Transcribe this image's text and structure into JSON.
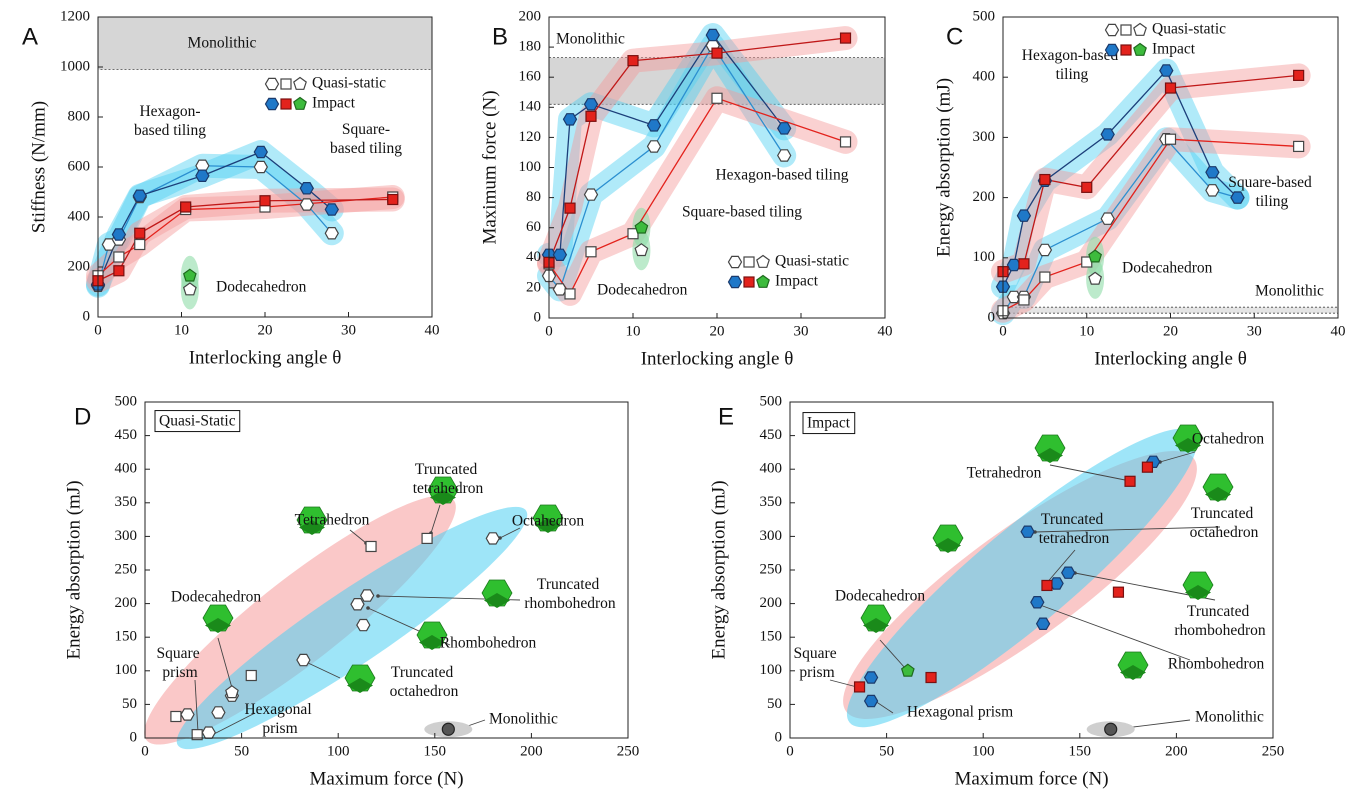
{
  "chart_data": [
    {
      "type": "line",
      "panel": "A",
      "xlabel": "Interlocking angle θ",
      "ylabel": "Stiffness (N/mm)",
      "xlim": [
        0,
        40
      ],
      "xticks": [
        0,
        10,
        20,
        30,
        40
      ],
      "ylim": [
        0,
        1200
      ],
      "yticks": [
        0,
        200,
        400,
        600,
        800,
        1000,
        1200
      ],
      "bands": [
        {
          "label": "Monolithic",
          "range": [
            990,
            1200
          ],
          "color": "#d6d6d6"
        }
      ],
      "legend": [
        {
          "label": "Quasi-static",
          "filled": false,
          "colors": [
            "#ffffff",
            "#ffffff",
            "#ffffff"
          ]
        },
        {
          "label": "Impact",
          "filled": true,
          "colors": [
            "#1f78c8",
            "#e3221c",
            "#3dbb3d"
          ]
        }
      ],
      "series": [
        {
          "name": "Hexagon-based tiling",
          "marker": "hexagon",
          "filled": false,
          "color": "#2b8fd0",
          "marker_color": "#ffffff",
          "band": "#4fd0f2",
          "x": [
            0,
            1.3,
            2.5,
            5,
            12.5,
            19.5,
            25,
            28
          ],
          "values": [
            125,
            290,
            310,
            480,
            605,
            600,
            450,
            335
          ]
        },
        {
          "name": "Hexagon-based tiling",
          "marker": "hexagon",
          "filled": true,
          "color": "#1c3f7a",
          "marker_color": "#1f78c8",
          "band": "#4fd0f2",
          "x": [
            0,
            2.5,
            5,
            12.5,
            19.5,
            25,
            28
          ],
          "values": [
            130,
            330,
            485,
            565,
            660,
            515,
            430
          ]
        },
        {
          "name": "Square-based tiling",
          "marker": "square",
          "filled": false,
          "color": "#e3221c",
          "marker_color": "#ffffff",
          "band": "#f59a9a",
          "x": [
            0,
            2.5,
            5,
            10.5,
            20,
            35.3
          ],
          "values": [
            165,
            240,
            290,
            430,
            440,
            480
          ]
        },
        {
          "name": "Square-based tiling",
          "marker": "square",
          "filled": true,
          "color": "#c01818",
          "marker_color": "#e3221c",
          "band": "#f59a9a",
          "x": [
            0,
            2.5,
            5,
            10.5,
            20,
            35.3
          ],
          "values": [
            145,
            185,
            335,
            440,
            465,
            470
          ]
        },
        {
          "name": "Dodecahedron",
          "marker": "pentagon",
          "filled": false,
          "color": "#3dbb3d",
          "marker_color": "#ffffff",
          "band": "#8fdca8",
          "x": [
            11
          ],
          "values": [
            110
          ]
        },
        {
          "name": "Dodecahedron",
          "marker": "pentagon",
          "filled": true,
          "color": "#3dbb3d",
          "marker_color": "#3dbb3d",
          "band": "#8fdca8",
          "x": [
            11
          ],
          "values": [
            165
          ]
        }
      ]
    },
    {
      "type": "line",
      "panel": "B",
      "xlabel": "Interlocking angle θ",
      "ylabel": "Maximum force (N)",
      "xlim": [
        0,
        40
      ],
      "xticks": [
        0,
        10,
        20,
        30,
        40
      ],
      "ylim": [
        0,
        200
      ],
      "yticks": [
        0,
        20,
        40,
        60,
        80,
        100,
        120,
        140,
        160,
        180,
        200
      ],
      "bands": [
        {
          "label": "Monolithic",
          "range": [
            142,
            173
          ],
          "color": "#d6d6d6"
        }
      ],
      "legend": [
        {
          "label": "Quasi-static",
          "filled": false,
          "colors": [
            "#ffffff",
            "#ffffff",
            "#ffffff"
          ]
        },
        {
          "label": "Impact",
          "filled": true,
          "colors": [
            "#1f78c8",
            "#e3221c",
            "#3dbb3d"
          ]
        }
      ],
      "series": [
        {
          "name": "Hexagon-based tiling",
          "marker": "hexagon",
          "filled": false,
          "color": "#2b8fd0",
          "marker_color": "#ffffff",
          "band": "#4fd0f2",
          "x": [
            0,
            1.3,
            5,
            12.5,
            19.5,
            28
          ],
          "values": [
            28,
            19,
            82,
            114,
            181,
            108
          ]
        },
        {
          "name": "Hexagon-based tiling",
          "marker": "hexagon",
          "filled": true,
          "color": "#1c3f7a",
          "marker_color": "#1f78c8",
          "band": "#4fd0f2",
          "x": [
            0,
            1.3,
            2.5,
            5,
            12.5,
            19.5,
            28
          ],
          "values": [
            42,
            42,
            132,
            142,
            128,
            188,
            126
          ]
        },
        {
          "name": "Square-based tiling",
          "marker": "square",
          "filled": false,
          "color": "#e3221c",
          "marker_color": "#ffffff",
          "band": "#f59a9a",
          "x": [
            0,
            2.5,
            5,
            10,
            20,
            35.3
          ],
          "values": [
            36,
            16,
            44,
            56,
            146,
            117
          ]
        },
        {
          "name": "Square-based tiling",
          "marker": "square",
          "filled": true,
          "color": "#c01818",
          "marker_color": "#e3221c",
          "band": "#f59a9a",
          "x": [
            0,
            2.5,
            5,
            10,
            20,
            35.3
          ],
          "values": [
            37,
            73,
            134,
            171,
            176,
            186
          ]
        },
        {
          "name": "Dodecahedron",
          "marker": "pentagon",
          "filled": false,
          "color": "#3dbb3d",
          "marker_color": "#ffffff",
          "band": "#8fdca8",
          "x": [
            11
          ],
          "values": [
            45
          ]
        },
        {
          "name": "Dodecahedron",
          "marker": "pentagon",
          "filled": true,
          "color": "#3dbb3d",
          "marker_color": "#3dbb3d",
          "band": "#8fdca8",
          "x": [
            11
          ],
          "values": [
            60
          ]
        }
      ]
    },
    {
      "type": "line",
      "panel": "C",
      "xlabel": "Interlocking angle θ",
      "ylabel": "Energy absorption (mJ)",
      "xlim": [
        0,
        40
      ],
      "xticks": [
        0,
        10,
        20,
        30,
        40
      ],
      "ylim": [
        0,
        500
      ],
      "yticks": [
        0,
        100,
        200,
        300,
        400,
        500
      ],
      "bands": [
        {
          "label": "Monolithic",
          "range": [
            8,
            18
          ],
          "color": "#e4e4e4"
        }
      ],
      "legend": [
        {
          "label": "Quasi-static",
          "filled": false,
          "colors": [
            "#ffffff",
            "#ffffff",
            "#ffffff"
          ]
        },
        {
          "label": "Impact",
          "filled": true,
          "colors": [
            "#1f78c8",
            "#e3221c",
            "#3dbb3d"
          ]
        }
      ],
      "series": [
        {
          "name": "Hexagon-based tiling",
          "marker": "hexagon",
          "filled": false,
          "color": "#2b8fd0",
          "marker_color": "#ffffff",
          "band": "#4fd0f2",
          "x": [
            0,
            1.3,
            2.5,
            5,
            12.5,
            19.5,
            25,
            28
          ],
          "values": [
            8,
            35,
            35,
            113,
            165,
            297,
            212,
            200
          ]
        },
        {
          "name": "Hexagon-based tiling",
          "marker": "hexagon",
          "filled": true,
          "color": "#1c3f7a",
          "marker_color": "#1f78c8",
          "band": "#4fd0f2",
          "x": [
            0,
            1.3,
            2.5,
            5,
            12.5,
            19.5,
            25,
            28
          ],
          "values": [
            52,
            88,
            170,
            228,
            305,
            411,
            242,
            200
          ]
        },
        {
          "name": "Square-based tiling",
          "marker": "square",
          "filled": false,
          "color": "#e3221c",
          "marker_color": "#ffffff",
          "band": "#f59a9a",
          "x": [
            0,
            2.5,
            5,
            10,
            20,
            35.3
          ],
          "values": [
            12,
            30,
            68,
            93,
            297,
            285
          ]
        },
        {
          "name": "Square-based tiling",
          "marker": "square",
          "filled": true,
          "color": "#c01818",
          "marker_color": "#e3221c",
          "band": "#f59a9a",
          "x": [
            0,
            2.5,
            5,
            10,
            20,
            35.3
          ],
          "values": [
            77,
            90,
            230,
            217,
            382,
            403
          ]
        },
        {
          "name": "Dodecahedron",
          "marker": "pentagon",
          "filled": false,
          "color": "#3dbb3d",
          "marker_color": "#ffffff",
          "band": "#8fdca8",
          "x": [
            11
          ],
          "values": [
            65
          ]
        },
        {
          "name": "Dodecahedron",
          "marker": "pentagon",
          "filled": true,
          "color": "#3dbb3d",
          "marker_color": "#3dbb3d",
          "band": "#8fdca8",
          "x": [
            11
          ],
          "values": [
            102
          ]
        }
      ]
    },
    {
      "type": "scatter",
      "panel": "D",
      "title": "Quasi-Static",
      "xlabel": "Maximum force (N)",
      "ylabel": "Energy absorption (mJ)",
      "xlim": [
        0,
        250
      ],
      "xticks": [
        0,
        50,
        100,
        150,
        200,
        250
      ],
      "ylim": [
        0,
        500
      ],
      "yticks": [
        0,
        50,
        100,
        150,
        200,
        250,
        300,
        350,
        400,
        450,
        500
      ],
      "series": [
        {
          "marker": "hexagon",
          "color": "#ffffff",
          "x": [
            22,
            33,
            38,
            45,
            82,
            110,
            113,
            115,
            180
          ],
          "values": [
            35,
            8,
            38,
            63,
            116,
            199,
            168,
            212,
            297
          ]
        },
        {
          "marker": "square",
          "color": "#ffffff",
          "x": [
            16,
            27,
            55,
            117,
            146
          ],
          "values": [
            32,
            5,
            93,
            285,
            297
          ]
        },
        {
          "marker": "pentagon",
          "color": "#ffffff",
          "x": [
            45
          ],
          "values": [
            68
          ]
        },
        {
          "name": "Monolithic",
          "marker": "circle",
          "color": "#555555",
          "x": [
            157
          ],
          "values": [
            13
          ]
        }
      ],
      "annotations": [
        {
          "text": "Truncated tetrahedron",
          "color": "#e3221c"
        },
        {
          "text": "Tetrahedron",
          "color": "#e3221c"
        },
        {
          "text": "Octahedron",
          "color": "#2b8fd0"
        },
        {
          "text": "Truncated rhombohedron",
          "color": "#2b8fd0"
        },
        {
          "text": "Rhombohedron",
          "color": "#2b8fd0"
        },
        {
          "text": "Truncated octahedron",
          "color": "#2b8fd0"
        },
        {
          "text": "Dodecahedron",
          "color": "#3dbb3d"
        },
        {
          "text": "Square prism",
          "color": "#e3221c"
        },
        {
          "text": "Hexagonal prism",
          "color": "#2b8fd0"
        }
      ]
    },
    {
      "type": "scatter",
      "panel": "E",
      "title": "Impact",
      "xlabel": "Maximum force (N)",
      "ylabel": "Energy absorption (mJ)",
      "xlim": [
        0,
        250
      ],
      "xticks": [
        0,
        50,
        100,
        150,
        200,
        250
      ],
      "ylim": [
        0,
        500
      ],
      "yticks": [
        0,
        50,
        100,
        150,
        200,
        250,
        300,
        350,
        400,
        450,
        500
      ],
      "series": [
        {
          "marker": "hexagon",
          "color": "#1f78c8",
          "x": [
            42,
            42,
            123,
            128,
            131,
            138,
            144,
            188
          ],
          "values": [
            90,
            55,
            307,
            202,
            170,
            230,
            246,
            411
          ]
        },
        {
          "marker": "square",
          "color": "#e3221c",
          "x": [
            36,
            73,
            133,
            170,
            176,
            185
          ],
          "values": [
            76,
            90,
            227,
            217,
            382,
            403
          ]
        },
        {
          "marker": "pentagon",
          "color": "#3dbb3d",
          "x": [
            61
          ],
          "values": [
            100
          ]
        },
        {
          "name": "Monolithic",
          "marker": "circle",
          "color": "#555555",
          "x": [
            166
          ],
          "values": [
            13
          ]
        }
      ],
      "annotations": [
        {
          "text": "Octahedron",
          "color": "#2b8fd0"
        },
        {
          "text": "Tetrahedron",
          "color": "#e3221c"
        },
        {
          "text": "Truncated tetrahedron",
          "color": "#e3221c"
        },
        {
          "text": "Truncated octahedron",
          "color": "#2b8fd0"
        },
        {
          "text": "Truncated rhombohedron",
          "color": "#2b8fd0"
        },
        {
          "text": "Rhombohedron",
          "color": "#2b8fd0"
        },
        {
          "text": "Dodecahedron",
          "color": "#3dbb3d"
        },
        {
          "text": "Square prism",
          "color": "#e3221c"
        },
        {
          "text": "Hexagonal prism",
          "color": "#2b8fd0"
        }
      ]
    }
  ]
}
